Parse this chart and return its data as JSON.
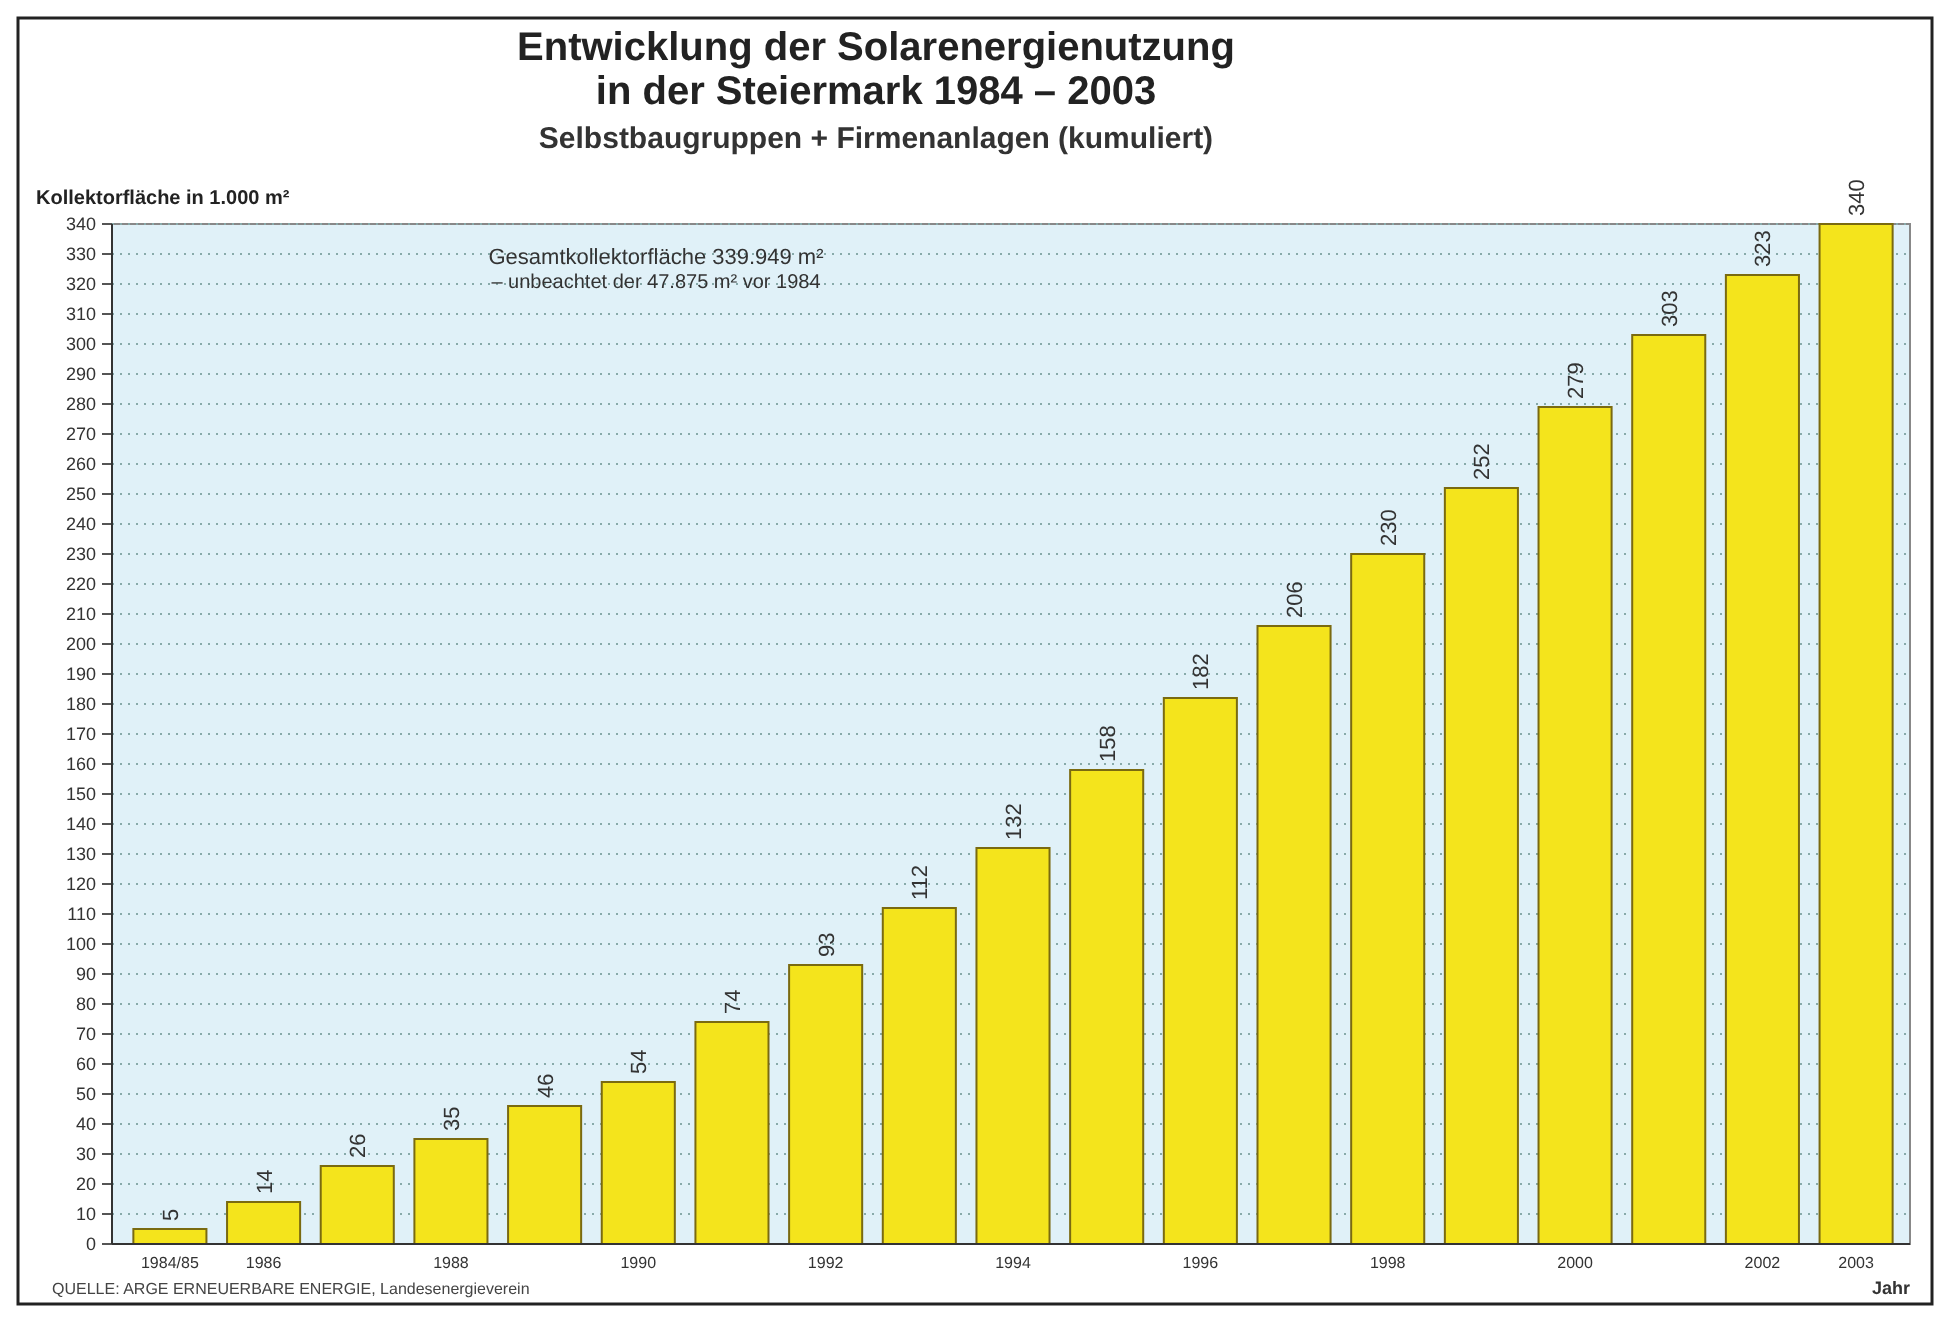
{
  "chart_data": {
    "type": "bar",
    "title": "Entwicklung der Solarenergienutzung\nin der Steiermark 1984 – 2003",
    "subtitle": "Selbstbaugruppen + Firmenanlagen (kumuliert)",
    "ylabel": "Kollektorfläche in 1.000 m²",
    "xlabel": "Jahr",
    "categories": [
      "1984/85",
      "1986",
      null,
      "1988",
      null,
      "1990",
      null,
      "1992",
      null,
      "1994",
      null,
      "1996",
      null,
      "1998",
      null,
      "2000",
      null,
      "2002",
      "2003"
    ],
    "values": [
      5,
      14,
      26,
      35,
      46,
      54,
      74,
      93,
      112,
      132,
      158,
      182,
      206,
      230,
      252,
      279,
      303,
      323,
      340
    ],
    "color": "#f4e41c",
    "data_labels": true,
    "ylim": [
      0,
      340
    ],
    "yticks": [
      0,
      10,
      20,
      30,
      40,
      50,
      60,
      70,
      80,
      90,
      100,
      110,
      120,
      130,
      140,
      150,
      160,
      170,
      180,
      190,
      200,
      210,
      220,
      230,
      240,
      250,
      260,
      270,
      280,
      290,
      300,
      310,
      320,
      330,
      340
    ],
    "grid": "y",
    "annotations": [
      "Gesamtkollektorfläche 339.949 m²\n– unbeachtet der 47.875 m² vor 1984",
      "QUELLE: ARGE ERNEUERBARE ENERGIE, Landesenergieverein"
    ]
  }
}
